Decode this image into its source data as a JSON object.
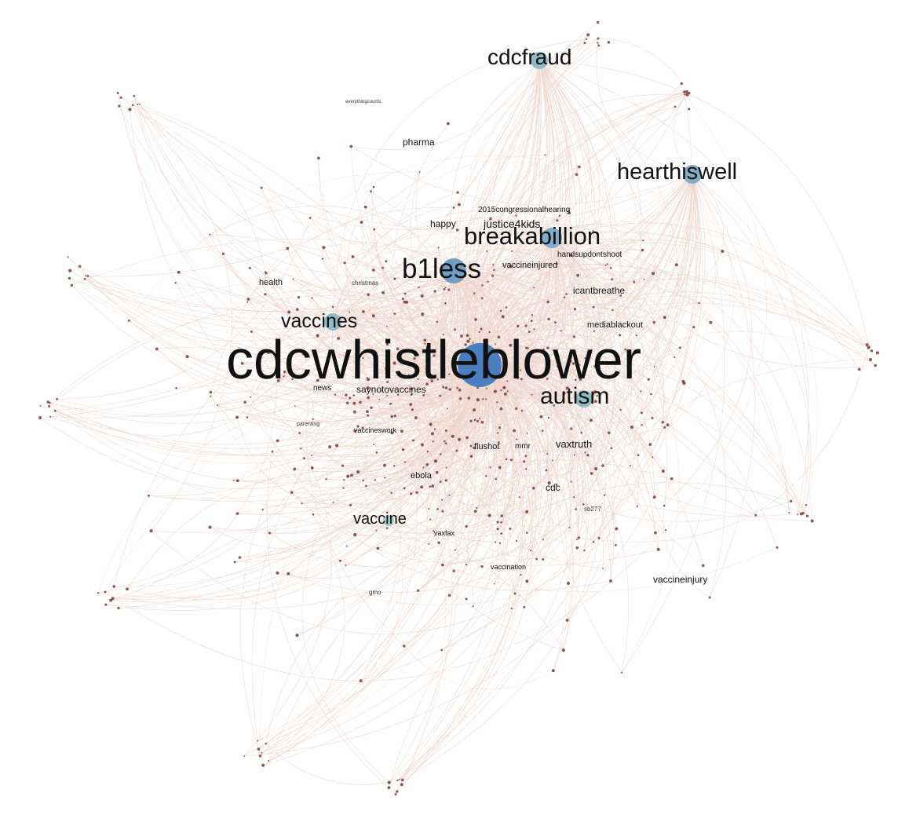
{
  "graph": {
    "edge_color": "#c97a6a",
    "edge_color_alt": "#e8c9a8",
    "hub_color": "#4a7ec1",
    "node_color_secondary": "#8fbcc6",
    "node_color_minor": "#7a3b3b",
    "labels": {
      "cdcwhistleblower": "cdcwhistleblower",
      "cdcfraud": "cdcfraud",
      "hearthiswell": "hearthiswell",
      "breakabillion": "breakabillion",
      "b1less": "b1less",
      "vaccines": "vaccines",
      "autism": "autism",
      "vaccine": "vaccine",
      "pharma": "pharma",
      "health": "health",
      "news": "news",
      "saynotovaccines": "saynotovaccines",
      "vaccineswork": "vaccineswork",
      "flushot": "flushot",
      "mmr": "mmr",
      "vaxtruth": "vaxtruth",
      "ebola": "ebola",
      "cdc": "cdc",
      "vaxfax": "vaxfax",
      "vaccination": "vaccination",
      "vaccineinjury": "vaccineinjury",
      "mediablackout": "mediablackout",
      "handsupdontshoot": "handsupdontshoot",
      "icantbreathe": "icantbreathe",
      "vaccineinjured": "vaccineinjured",
      "congressionalhearing": "2015congressionalhearing",
      "happy": "happy",
      "justice4kids": "justice4kids",
      "christmas": "christmas",
      "parenting": "parenting",
      "everythingcounts": "everythingcounts",
      "sb277": "sb277",
      "gmo": "gmo"
    }
  }
}
